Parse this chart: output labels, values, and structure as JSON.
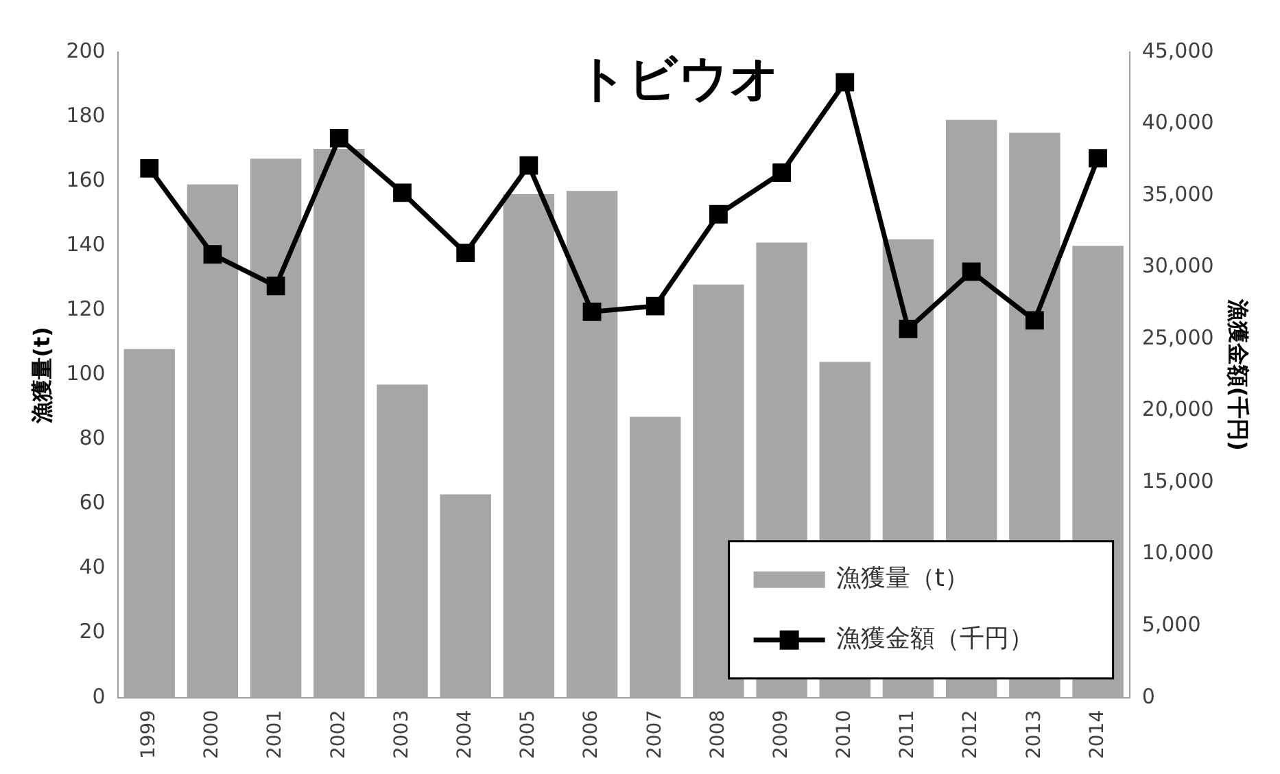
{
  "chart_data": {
    "type": "bar",
    "title": "トビウオ",
    "ylabel": "漁獲量(t)",
    "y2label": "漁獲金額(千円)",
    "categories": [
      "1999",
      "2000",
      "2001",
      "2002",
      "2003",
      "2004",
      "2005",
      "2006",
      "2007",
      "2008",
      "2009",
      "2010",
      "2011",
      "2012",
      "2013",
      "2014"
    ],
    "series": [
      {
        "name": "漁獲量（t）",
        "color": "#a6a6a6",
        "values": [
          108,
          159,
          167,
          170,
          97,
          63,
          156,
          157,
          87,
          128,
          141,
          104,
          142,
          179,
          175,
          140
        ]
      },
      {
        "name": "漁獲金額（千円）",
        "type": "line",
        "axis": "y2",
        "color": "#000000",
        "values": [
          36900,
          30900,
          28700,
          39000,
          35200,
          31000,
          37100,
          26900,
          27300,
          33700,
          36600,
          42900,
          25700,
          29700,
          26300,
          37600
        ]
      }
    ],
    "ylim": [
      0,
      200
    ],
    "yticks": [
      0,
      20,
      40,
      60,
      80,
      100,
      120,
      140,
      160,
      180,
      200
    ],
    "y2lim": [
      0,
      45000
    ],
    "y2ticks": [
      0,
      {
        "value": 5000,
        "label": "5,000"
      },
      {
        "value": 10000,
        "label": "10,000"
      },
      {
        "value": 15000,
        "label": "15,000"
      },
      {
        "value": 20000,
        "label": "20,000"
      },
      {
        "value": 25000,
        "label": "25,000"
      },
      {
        "value": 30000,
        "label": "30,000"
      },
      {
        "value": 35000,
        "label": "35,000"
      },
      {
        "value": 40000,
        "label": "40,000"
      },
      {
        "value": 45000,
        "label": "45,000"
      }
    ],
    "grid": false,
    "legend": "bottom right",
    "marker": "square",
    "line_style": "solid"
  }
}
